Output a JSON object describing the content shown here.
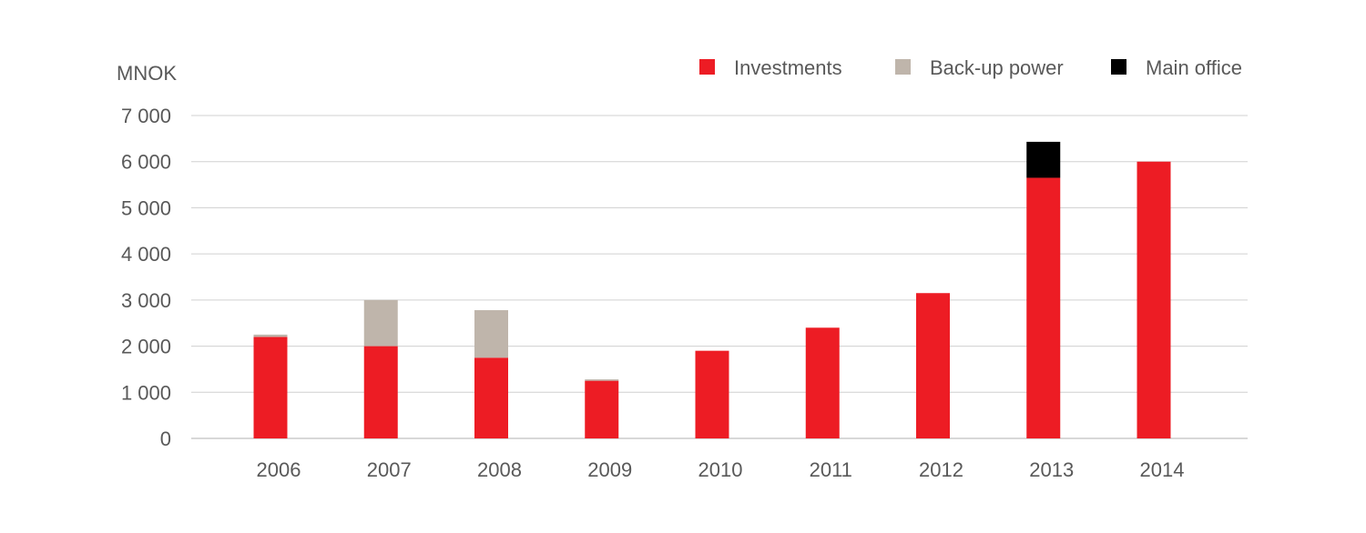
{
  "chart_data": {
    "type": "bar",
    "stacked": true,
    "title": "",
    "xlabel": "",
    "ylabel": "MNOK",
    "ylim": [
      0,
      7000
    ],
    "yticks": [
      0,
      1000,
      2000,
      3000,
      4000,
      5000,
      6000,
      7000
    ],
    "ytick_labels": [
      "0",
      "1 000",
      "2 000",
      "3 000",
      "4 000",
      "5 000",
      "6 000",
      "7 000"
    ],
    "grid": true,
    "legend_position": "top-right",
    "categories": [
      "2006",
      "2007",
      "2008",
      "2009",
      "2010",
      "2011",
      "2012",
      "2013",
      "2014"
    ],
    "series": [
      {
        "name": "Investments",
        "color": "#ed1c24",
        "values": [
          2200,
          2000,
          1750,
          1250,
          1900,
          2400,
          3150,
          5650,
          6000
        ]
      },
      {
        "name": "Back-up power",
        "color": "#bfb5ab",
        "values": [
          50,
          1000,
          1030,
          30,
          0,
          0,
          0,
          0,
          0
        ]
      },
      {
        "name": "Main office",
        "color": "#000000",
        "values": [
          0,
          0,
          0,
          0,
          0,
          0,
          0,
          780,
          0
        ]
      }
    ]
  }
}
